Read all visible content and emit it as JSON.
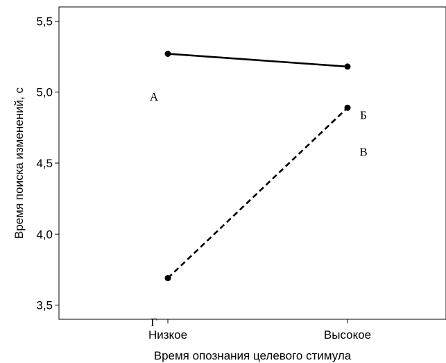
{
  "chart_data": {
    "type": "line",
    "xlabel": "Время опознания целевого стимула",
    "ylabel": "Время поиска изменений, с",
    "categories": [
      "Низкое",
      "Высокое"
    ],
    "ylim": [
      3.4,
      5.6
    ],
    "yticks": [
      "3,5",
      "4,0",
      "4,5",
      "5,0",
      "5,5"
    ],
    "ytick_values": [
      3.5,
      4.0,
      4.5,
      5.0,
      5.5
    ],
    "grid": false,
    "series": [
      {
        "values": [
          5.27,
          5.18
        ],
        "style": "solid"
      },
      {
        "values": [
          3.69,
          4.89
        ],
        "style": "dashed"
      }
    ],
    "annotations": [
      {
        "text": "А",
        "x": "Низкое",
        "y": 4.97
      },
      {
        "text": "Б",
        "x": "Высокое",
        "y": 4.84
      },
      {
        "text": "В",
        "x": "Высокое",
        "y": 4.58
      },
      {
        "text": "Г",
        "x": "Низкое",
        "y": 3.38
      }
    ]
  }
}
